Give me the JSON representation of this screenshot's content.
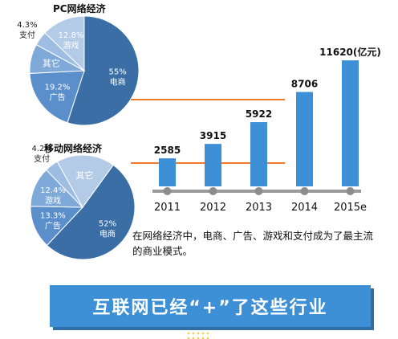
{
  "chart_data": [
    {
      "type": "pie",
      "title": "PC网络经济",
      "slices": [
        {
          "value_label": "55%",
          "name": "电商",
          "value": 55,
          "color": "#3a6ea5"
        },
        {
          "value_label": "19.2%",
          "name": "广告",
          "value": 19.2,
          "color": "#5b8fcb"
        },
        {
          "value_label": "",
          "name": "其它",
          "value": 8.7,
          "color": "#7fa9d8"
        },
        {
          "value_label": "4.3%",
          "name": "支付",
          "value": 4.3,
          "color": "#9dbde3"
        },
        {
          "value_label": "12.8%",
          "name": "游戏",
          "value": 12.8,
          "color": "#b4cbe8"
        }
      ]
    },
    {
      "type": "pie",
      "title": "移动网络经济",
      "slices": [
        {
          "value_label": "52%",
          "name": "电商",
          "value": 52,
          "color": "#3a6ea5"
        },
        {
          "value_label": "13.3%",
          "name": "广告",
          "value": 13.3,
          "color": "#5b8fcb"
        },
        {
          "value_label": "12.4%",
          "name": "游戏",
          "value": 12.4,
          "color": "#7fa9d8"
        },
        {
          "value_label": "4.2%",
          "name": "支付",
          "value": 4.2,
          "color": "#9dbde3"
        },
        {
          "value_label": "",
          "name": "其它",
          "value": 18.1,
          "color": "#b4cbe8"
        }
      ]
    },
    {
      "type": "bar",
      "categories": [
        "2011",
        "2012",
        "2013",
        "2014",
        "2015e"
      ],
      "values": [
        2585,
        3915,
        5922,
        8706,
        11620
      ],
      "value_labels": [
        "2585",
        "3915",
        "5922",
        "8706",
        "11620(亿元)"
      ],
      "ylim": [
        0,
        12000
      ],
      "bar_color": "#3d8fd6",
      "axis_color": "#9a9a9a",
      "connector_color": "#f07a2a"
    }
  ],
  "caption": "在网络经济中，电商、广告、游戏和支付成为了最主流的商业模式。",
  "banner": "互联网已经“+”了这些行业"
}
